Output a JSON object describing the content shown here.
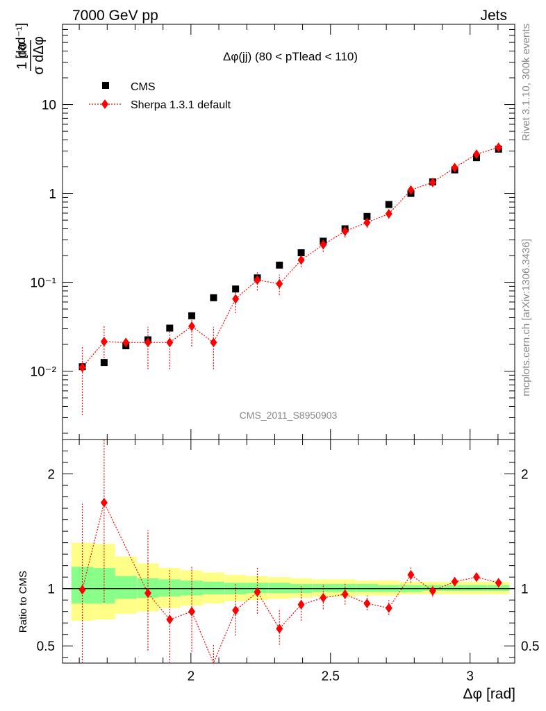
{
  "header": {
    "left": "7000 GeV pp",
    "right": "Jets"
  },
  "side_labels": {
    "rivet": "Rivet 3.1.10,  300k events",
    "mcplots": "mcplots.cern.ch [arXiv:1306.3436]"
  },
  "watermark": "CMS_2011_S8950903",
  "chart_data": [
    {
      "type": "scatter",
      "title": "Δφ(jj) (80 < pTlead <  110)",
      "xlabel": "Δφ [rad]",
      "ylabel_main": "1 dσ / σ dΔφ",
      "ylabel_unit": "[rad⁻¹]",
      "yscale": "log",
      "ylim": [
        0.0017,
        80
      ],
      "xlim": [
        1.54,
        3.16
      ],
      "ytick_labels": [
        "10⁻²",
        "10⁻¹",
        "1",
        "10"
      ],
      "legend": {
        "placement": "top-left",
        "entries": [
          "CMS",
          "Sherpa 1.3.1 default"
        ]
      },
      "series": [
        {
          "name": "CMS",
          "marker": "square",
          "color": "#000000",
          "x": [
            1.611,
            1.689,
            1.767,
            1.846,
            1.924,
            2.003,
            2.081,
            2.16,
            2.238,
            2.317,
            2.395,
            2.474,
            2.552,
            2.631,
            2.709,
            2.788,
            2.866,
            2.945,
            3.023,
            3.102
          ],
          "y": [
            0.0112,
            0.0125,
            0.0193,
            0.0225,
            0.0305,
            0.042,
            0.067,
            0.084,
            0.112,
            0.156,
            0.215,
            0.29,
            0.4,
            0.55,
            0.75,
            1.0,
            1.35,
            1.84,
            2.52,
            3.15
          ]
        },
        {
          "name": "Sherpa 1.3.1 default",
          "marker": "diamond",
          "line": "dotted",
          "color": "#ff0000",
          "x": [
            1.611,
            1.689,
            1.767,
            1.846,
            1.924,
            2.003,
            2.081,
            2.16,
            2.238,
            2.317,
            2.395,
            2.474,
            2.552,
            2.631,
            2.709,
            2.788,
            2.866,
            2.945,
            3.023,
            3.102
          ],
          "y": [
            0.011,
            0.0215,
            0.021,
            0.021,
            0.021,
            0.032,
            0.021,
            0.065,
            0.106,
            0.096,
            0.178,
            0.265,
            0.375,
            0.47,
            0.59,
            1.09,
            1.33,
            1.95,
            2.76,
            3.3
          ],
          "err_low": [
            0.0078,
            0.0085,
            0.0,
            0.0105,
            0.0105,
            0.013,
            0.0105,
            0.02,
            0.025,
            0.024,
            0.03,
            0.045,
            0.055,
            0.06,
            0.07,
            0.1,
            0.12,
            0.15,
            0.18,
            0.2
          ],
          "err_high": [
            0.0078,
            0.0115,
            0.0,
            0.0105,
            0.0105,
            0.014,
            0.0105,
            0.022,
            0.026,
            0.026,
            0.03,
            0.045,
            0.055,
            0.06,
            0.07,
            0.1,
            0.12,
            0.15,
            0.18,
            0.2
          ]
        }
      ]
    },
    {
      "type": "scatter",
      "xlabel": "Δφ [rad]",
      "ylabel": "Ratio to CMS",
      "ylim": [
        0.35,
        2.3
      ],
      "xlim": [
        1.54,
        3.16
      ],
      "xticks": [
        2,
        2.5,
        3
      ],
      "xtick_labels": [
        "2",
        "2.5",
        "3"
      ],
      "yticks": [
        0.5,
        1,
        2
      ],
      "ytick_labels": [
        "0.5",
        "1",
        "2"
      ],
      "reference_band_outer": {
        "color": "#ffff88",
        "x": [
          1.611,
          1.689,
          1.767,
          1.846,
          1.924,
          2.003,
          2.081,
          2.16,
          2.238,
          2.317,
          2.395,
          2.474,
          2.552,
          2.631,
          2.709,
          2.788,
          2.866,
          2.945,
          3.023,
          3.102
        ],
        "low": [
          0.72,
          0.73,
          0.78,
          0.8,
          0.83,
          0.85,
          0.87,
          0.89,
          0.9,
          0.91,
          0.92,
          0.93,
          0.93,
          0.94,
          0.94,
          0.95,
          0.95,
          0.95,
          0.95,
          0.95
        ],
        "high": [
          1.4,
          1.39,
          1.28,
          1.22,
          1.18,
          1.16,
          1.14,
          1.12,
          1.11,
          1.1,
          1.09,
          1.08,
          1.08,
          1.07,
          1.07,
          1.06,
          1.06,
          1.06,
          1.06,
          1.06
        ]
      },
      "reference_band_inner": {
        "color": "#88ff88",
        "x": [
          1.611,
          1.689,
          1.767,
          1.846,
          1.924,
          2.003,
          2.081,
          2.16,
          2.238,
          2.317,
          2.395,
          2.474,
          2.552,
          2.631,
          2.709,
          2.788,
          2.866,
          2.945,
          3.023,
          3.102
        ],
        "low": [
          0.87,
          0.87,
          0.91,
          0.92,
          0.93,
          0.94,
          0.95,
          0.95,
          0.96,
          0.96,
          0.96,
          0.97,
          0.97,
          0.97,
          0.97,
          0.97,
          0.98,
          0.98,
          0.98,
          0.98
        ],
        "high": [
          1.19,
          1.18,
          1.11,
          1.09,
          1.08,
          1.07,
          1.06,
          1.05,
          1.05,
          1.05,
          1.04,
          1.04,
          1.04,
          1.04,
          1.03,
          1.03,
          1.03,
          1.03,
          1.03,
          1.03
        ]
      },
      "series": [
        {
          "name": "Sherpa 1.3.1 default",
          "marker": "diamond",
          "line": "dotted",
          "color": "#ff0000",
          "x": [
            1.611,
            1.689,
            1.767,
            1.846,
            1.924,
            2.003,
            2.081,
            2.16,
            2.238,
            2.317,
            2.395,
            2.474,
            2.552,
            2.631,
            2.709,
            2.788,
            2.866,
            2.945,
            3.023,
            3.102
          ],
          "y": [
            0.99,
            1.75,
            null,
            0.96,
            0.73,
            0.8,
            0.3,
            0.81,
            0.97,
            0.65,
            0.86,
            0.92,
            0.95,
            0.87,
            0.83,
            1.12,
            0.98,
            1.06,
            1.1,
            1.05
          ],
          "err_low": [
            0.7,
            0.87,
            null,
            0.5,
            0.4,
            0.35,
            0.2,
            0.22,
            0.19,
            0.14,
            0.14,
            0.1,
            0.09,
            0.06,
            0.06,
            0.07,
            0.05,
            0.04,
            0.04,
            0.04
          ],
          "err_high": [
            0.75,
            0.95,
            null,
            0.55,
            0.43,
            0.4,
            0.22,
            0.24,
            0.22,
            0.16,
            0.16,
            0.12,
            0.1,
            0.07,
            0.07,
            0.07,
            0.05,
            0.04,
            0.04,
            0.04
          ]
        }
      ]
    }
  ]
}
